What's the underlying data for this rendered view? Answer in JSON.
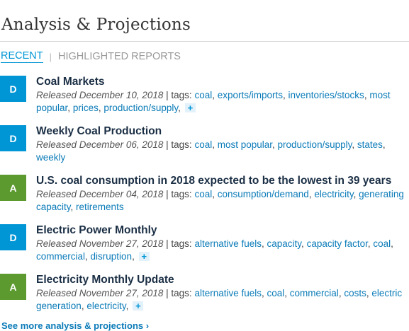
{
  "title": "Analysis & Projections",
  "tabs": [
    {
      "label": "RECENT",
      "active": true
    },
    {
      "label": "HIGHLIGHTED REPORTS",
      "active": false
    }
  ],
  "tab_separator": "|",
  "items": [
    {
      "badge": "D",
      "title": "Coal Markets",
      "released": "Released December 10, 2018",
      "tags_label": "| tags:",
      "tags": [
        "coal",
        "exports/imports",
        "inventories/stocks",
        "most popular",
        "prices",
        "production/supply"
      ],
      "has_more": true
    },
    {
      "badge": "D",
      "title": "Weekly Coal Production",
      "released": "Released December 06, 2018",
      "tags_label": "| tags:",
      "tags": [
        "coal",
        "most popular",
        "production/supply",
        "states",
        "weekly"
      ],
      "has_more": false
    },
    {
      "badge": "A",
      "title": "U.S. coal consumption in 2018 expected to be the lowest in 39 years",
      "released": "Released December 04, 2018",
      "tags_label": "| tags:",
      "tags": [
        "coal",
        "consumption/demand",
        "electricity",
        "generating capacity",
        "retirements"
      ],
      "has_more": false
    },
    {
      "badge": "D",
      "title": "Electric Power Monthly",
      "released": "Released November 27, 2018",
      "tags_label": "| tags:",
      "tags": [
        "alternative fuels",
        "capacity",
        "capacity factor",
        "coal",
        "commercial",
        "disruption"
      ],
      "has_more": true
    },
    {
      "badge": "A",
      "title": "Electricity Monthly Update",
      "released": "Released November 27, 2018",
      "tags_label": "| tags:",
      "tags": [
        "alternative fuels",
        "coal",
        "commercial",
        "costs",
        "electric generation",
        "electricity"
      ],
      "has_more": true
    }
  ],
  "more_label": "+",
  "see_more": "See more analysis & projections ›"
}
